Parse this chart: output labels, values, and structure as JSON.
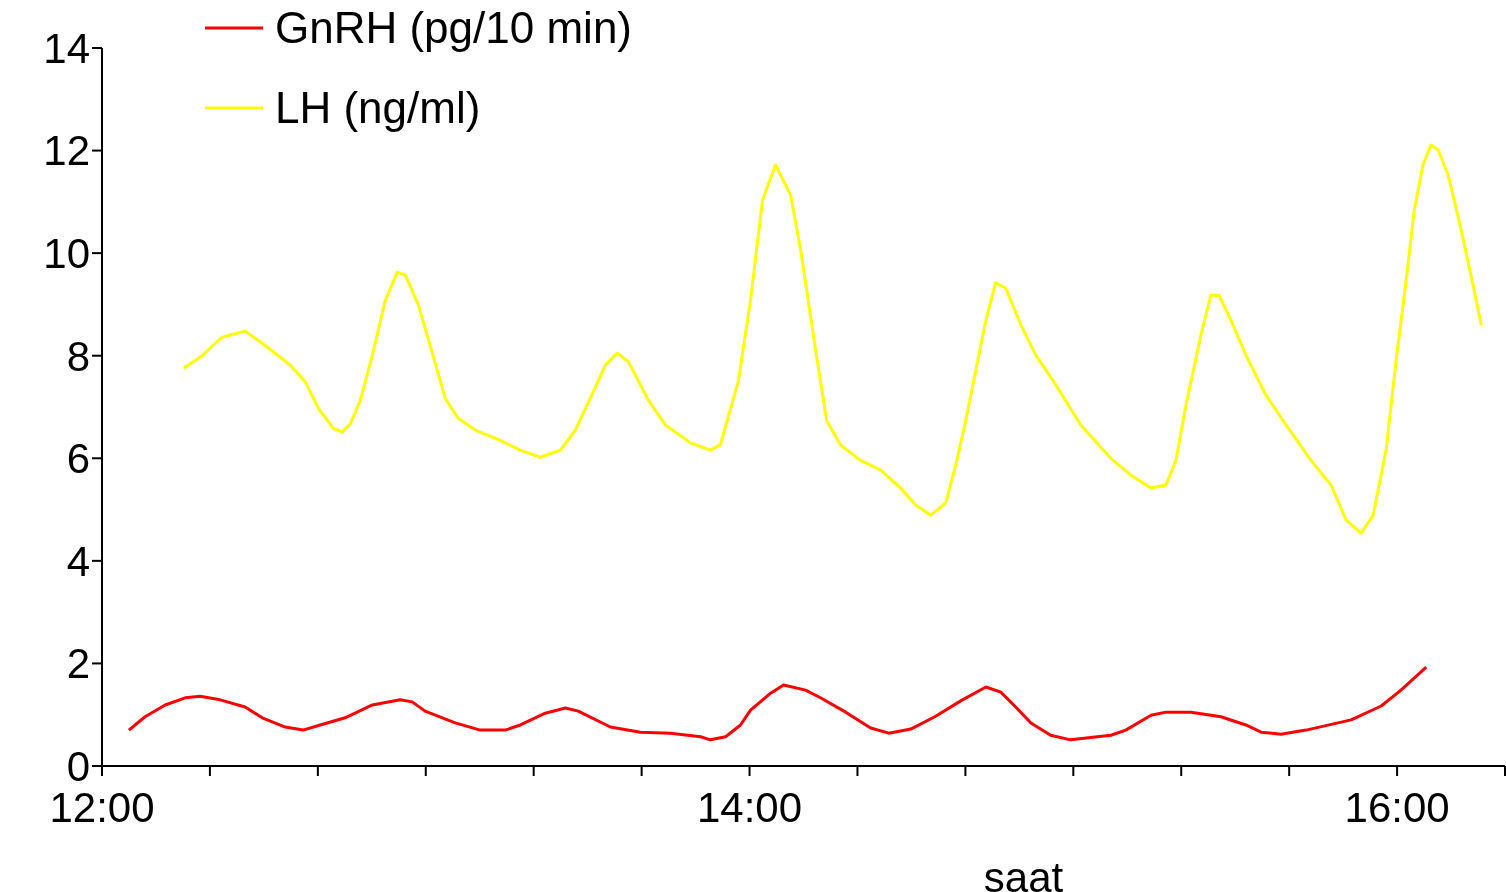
{
  "chart_data": {
    "type": "line",
    "xlabel": "saat",
    "xlim": [
      12,
      16.3333
    ],
    "xticks": [
      {
        "value": 12,
        "label": "12:00"
      },
      {
        "value": 12.3333,
        "label": null
      },
      {
        "value": 12.6667,
        "label": null
      },
      {
        "value": 13,
        "label": null
      },
      {
        "value": 13.3333,
        "label": null
      },
      {
        "value": 13.6667,
        "label": null
      },
      {
        "value": 14,
        "label": "14:00"
      },
      {
        "value": 14.3333,
        "label": null
      },
      {
        "value": 14.6667,
        "label": null
      },
      {
        "value": 15,
        "label": null
      },
      {
        "value": 15.3333,
        "label": null
      },
      {
        "value": 15.6667,
        "label": null
      },
      {
        "value": 16,
        "label": "16:00"
      },
      {
        "value": 16.3333,
        "label": null
      }
    ],
    "ylim": [
      0,
      14
    ],
    "yticks": [
      0,
      2,
      4,
      6,
      8,
      10,
      12,
      14
    ],
    "grid": false,
    "legend": "top left",
    "marker": "none",
    "line_style": "solid",
    "series": [
      {
        "name": "GnRH (pg/10 min)",
        "color": "#ff0000",
        "x": [
          12.083,
          12.133,
          12.195,
          12.257,
          12.303,
          12.365,
          12.442,
          12.495,
          12.566,
          12.621,
          12.674,
          12.751,
          12.835,
          12.921,
          12.958,
          12.998,
          13.091,
          13.168,
          13.246,
          13.292,
          13.369,
          13.431,
          13.471,
          13.57,
          13.663,
          13.756,
          13.849,
          13.879,
          13.926,
          13.972,
          14.003,
          14.065,
          14.105,
          14.173,
          14.219,
          14.297,
          14.374,
          14.43,
          14.498,
          14.575,
          14.652,
          14.73,
          14.776,
          14.822,
          14.869,
          14.93,
          14.992,
          15.116,
          15.162,
          15.24,
          15.286,
          15.363,
          15.456,
          15.533,
          15.58,
          15.641,
          15.719,
          15.858,
          15.951,
          16.012,
          16.09
        ],
        "values": [
          0.7,
          0.96,
          1.19,
          1.33,
          1.36,
          1.29,
          1.15,
          0.94,
          0.76,
          0.7,
          0.8,
          0.94,
          1.19,
          1.29,
          1.25,
          1.07,
          0.84,
          0.7,
          0.7,
          0.8,
          1.03,
          1.13,
          1.07,
          0.76,
          0.66,
          0.64,
          0.57,
          0.51,
          0.57,
          0.8,
          1.09,
          1.42,
          1.58,
          1.48,
          1.33,
          1.05,
          0.74,
          0.64,
          0.72,
          0.97,
          1.27,
          1.54,
          1.44,
          1.15,
          0.84,
          0.6,
          0.51,
          0.6,
          0.7,
          0.99,
          1.05,
          1.05,
          0.96,
          0.8,
          0.66,
          0.62,
          0.7,
          0.9,
          1.17,
          1.48,
          1.93
        ]
      },
      {
        "name": "LH (ng/ml)",
        "color": "#ffff00",
        "x": [
          12.253,
          12.303,
          12.371,
          12.442,
          12.504,
          12.581,
          12.628,
          12.668,
          12.714,
          12.742,
          12.767,
          12.798,
          12.835,
          12.875,
          12.912,
          12.937,
          12.977,
          13.014,
          13.06,
          13.1,
          13.153,
          13.23,
          13.292,
          13.354,
          13.416,
          13.462,
          13.508,
          13.555,
          13.592,
          13.626,
          13.688,
          13.74,
          13.818,
          13.879,
          13.91,
          13.966,
          14.003,
          14.04,
          14.08,
          14.127,
          14.158,
          14.204,
          14.238,
          14.281,
          14.343,
          14.405,
          14.467,
          14.513,
          14.56,
          14.606,
          14.637,
          14.668,
          14.699,
          14.73,
          14.76,
          14.791,
          14.838,
          14.884,
          14.946,
          15.023,
          15.116,
          15.178,
          15.24,
          15.286,
          15.317,
          15.348,
          15.394,
          15.425,
          15.45,
          15.487,
          15.533,
          15.595,
          15.657,
          15.734,
          15.796,
          15.842,
          15.889,
          15.926,
          15.966,
          15.997,
          16.028,
          16.053,
          16.08,
          16.105,
          16.127,
          16.158,
          16.198,
          16.238,
          16.26
        ],
        "values": [
          7.76,
          7.97,
          8.36,
          8.48,
          8.2,
          7.82,
          7.49,
          6.98,
          6.59,
          6.51,
          6.67,
          7.13,
          8.01,
          9.08,
          9.63,
          9.57,
          8.99,
          8.19,
          7.17,
          6.78,
          6.55,
          6.35,
          6.16,
          6.02,
          6.16,
          6.55,
          7.17,
          7.82,
          8.05,
          7.88,
          7.13,
          6.65,
          6.3,
          6.16,
          6.26,
          7.52,
          9.08,
          11.03,
          11.72,
          11.13,
          10.06,
          8.11,
          6.74,
          6.26,
          5.96,
          5.77,
          5.42,
          5.09,
          4.89,
          5.13,
          5.87,
          6.74,
          7.72,
          8.69,
          9.42,
          9.32,
          8.6,
          8.01,
          7.43,
          6.65,
          6.0,
          5.67,
          5.42,
          5.48,
          5.96,
          7.04,
          8.4,
          9.18,
          9.18,
          8.69,
          8.01,
          7.23,
          6.65,
          5.96,
          5.48,
          4.8,
          4.54,
          4.89,
          6.16,
          7.91,
          9.47,
          10.84,
          11.72,
          12.11,
          12.01,
          11.52,
          10.45,
          9.28,
          8.6
        ]
      }
    ]
  }
}
